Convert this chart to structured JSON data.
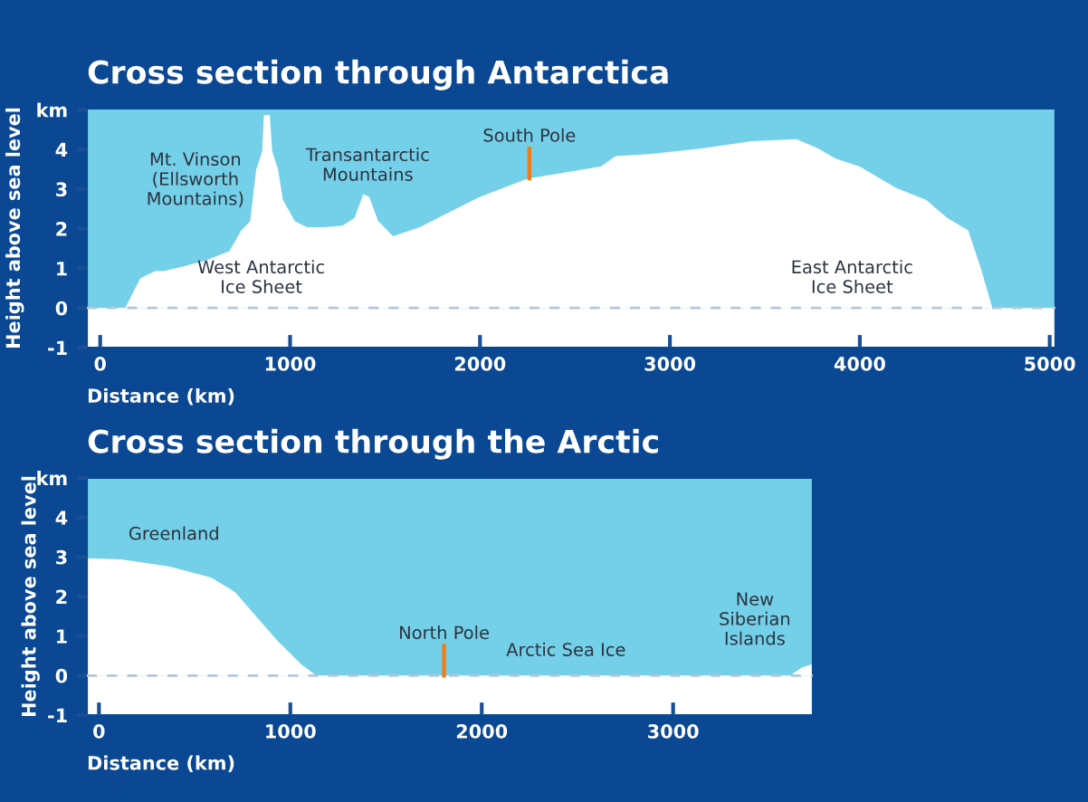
{
  "chart_data": [
    {
      "type": "area",
      "title": "Cross section through Antarctica",
      "xlabel": "Distance (km)",
      "ylabel": "Height above sea level",
      "xlim": [
        -70,
        5030
      ],
      "ylim": [
        -1,
        5.03
      ],
      "xticks": [
        0,
        1000,
        2000,
        3000,
        4000,
        5000
      ],
      "yticks": [
        -1,
        0,
        1,
        2,
        3,
        4,
        {
          "value": 5,
          "label": "km"
        }
      ],
      "series": [
        {
          "color": "#ffffff",
          "x": [
            85,
            132,
            210,
            288,
            335,
            430,
            555,
            680,
            743,
            790,
            821,
            853,
            862,
            893,
            906,
            937,
            962,
            1025,
            1088,
            1182,
            1276,
            1339,
            1386,
            1417,
            1464,
            1542,
            1683,
            1840,
            1997,
            2248,
            2635,
            2714,
            2889,
            3175,
            3429,
            3667,
            3778,
            3873,
            4000,
            4190,
            4349,
            4460,
            4571,
            4635,
            4698,
            4762
          ],
          "values": [
            -1,
            0,
            0.74,
            0.93,
            0.93,
            1.04,
            1.2,
            1.43,
            1.96,
            2.19,
            3.49,
            3.95,
            4.87,
            4.87,
            3.95,
            3.49,
            2.73,
            2.19,
            2.04,
            2.04,
            2.08,
            2.27,
            2.88,
            2.8,
            2.19,
            1.81,
            2.04,
            2.42,
            2.8,
            3.26,
            3.57,
            3.83,
            3.88,
            4.03,
            4.21,
            4.26,
            4.03,
            3.77,
            3.57,
            3.03,
            2.73,
            2.27,
            1.96,
            1.04,
            0,
            -1
          ]
        }
      ],
      "bands": [
        {
          "axis": "y",
          "from": -1,
          "to": 5.03,
          "color": "#74cfe8"
        },
        {
          "axis": "y",
          "from": -1,
          "to": 0,
          "color": "#ffffff"
        }
      ],
      "ref_lines": [
        {
          "axis": "y",
          "value": 0,
          "color": "#b4c6d8",
          "line_style": "dashed"
        },
        {
          "axis": "x",
          "value": 2260,
          "label": "South Pole",
          "color": "#f07d1a"
        }
      ],
      "annotations": [
        "Mt. Vinson\n(Ellsworth\nMountains)",
        "Transantarctic\nMountains",
        "West Antarctic\nIce Sheet",
        "East Antarctic\nIce Sheet"
      ],
      "grid": false
    },
    {
      "type": "area",
      "title": "Cross section through the Arctic",
      "xlabel": "Distance (km)",
      "ylabel": "Height above sea level",
      "xlim": [
        -63,
        3730
      ],
      "ylim": [
        -1,
        5
      ],
      "xticks": [
        0,
        1000,
        2000,
        3000
      ],
      "yticks": [
        -1,
        0,
        1,
        2,
        3,
        4,
        {
          "value": 5,
          "label": "km"
        }
      ],
      "series": [
        {
          "color": "#ffffff",
          "x": [
            -63,
            116,
            367,
            586,
            712,
            806,
            931,
            1056,
            1135,
            3611,
            3674,
            3730
          ],
          "values": [
            2.97,
            2.94,
            2.76,
            2.48,
            2.11,
            1.58,
            0.89,
            0.29,
            0,
            0,
            0.21,
            0.29
          ]
        }
      ],
      "bands": [
        {
          "axis": "y",
          "from": -1,
          "to": 5,
          "color": "#74cfe8"
        },
        {
          "axis": "y",
          "from": -1,
          "to": 0,
          "color": "#ffffff"
        }
      ],
      "ref_lines": [
        {
          "axis": "y",
          "value": 0,
          "color": "#b4c6d8",
          "line_style": "dashed"
        },
        {
          "axis": "x",
          "value": 1803,
          "label": "North Pole",
          "color": "#f07d1a"
        }
      ],
      "annotations": [
        "Greenland",
        "Arctic Sea Ice",
        "New\nSiberian\nIslands"
      ],
      "grid": false
    }
  ]
}
